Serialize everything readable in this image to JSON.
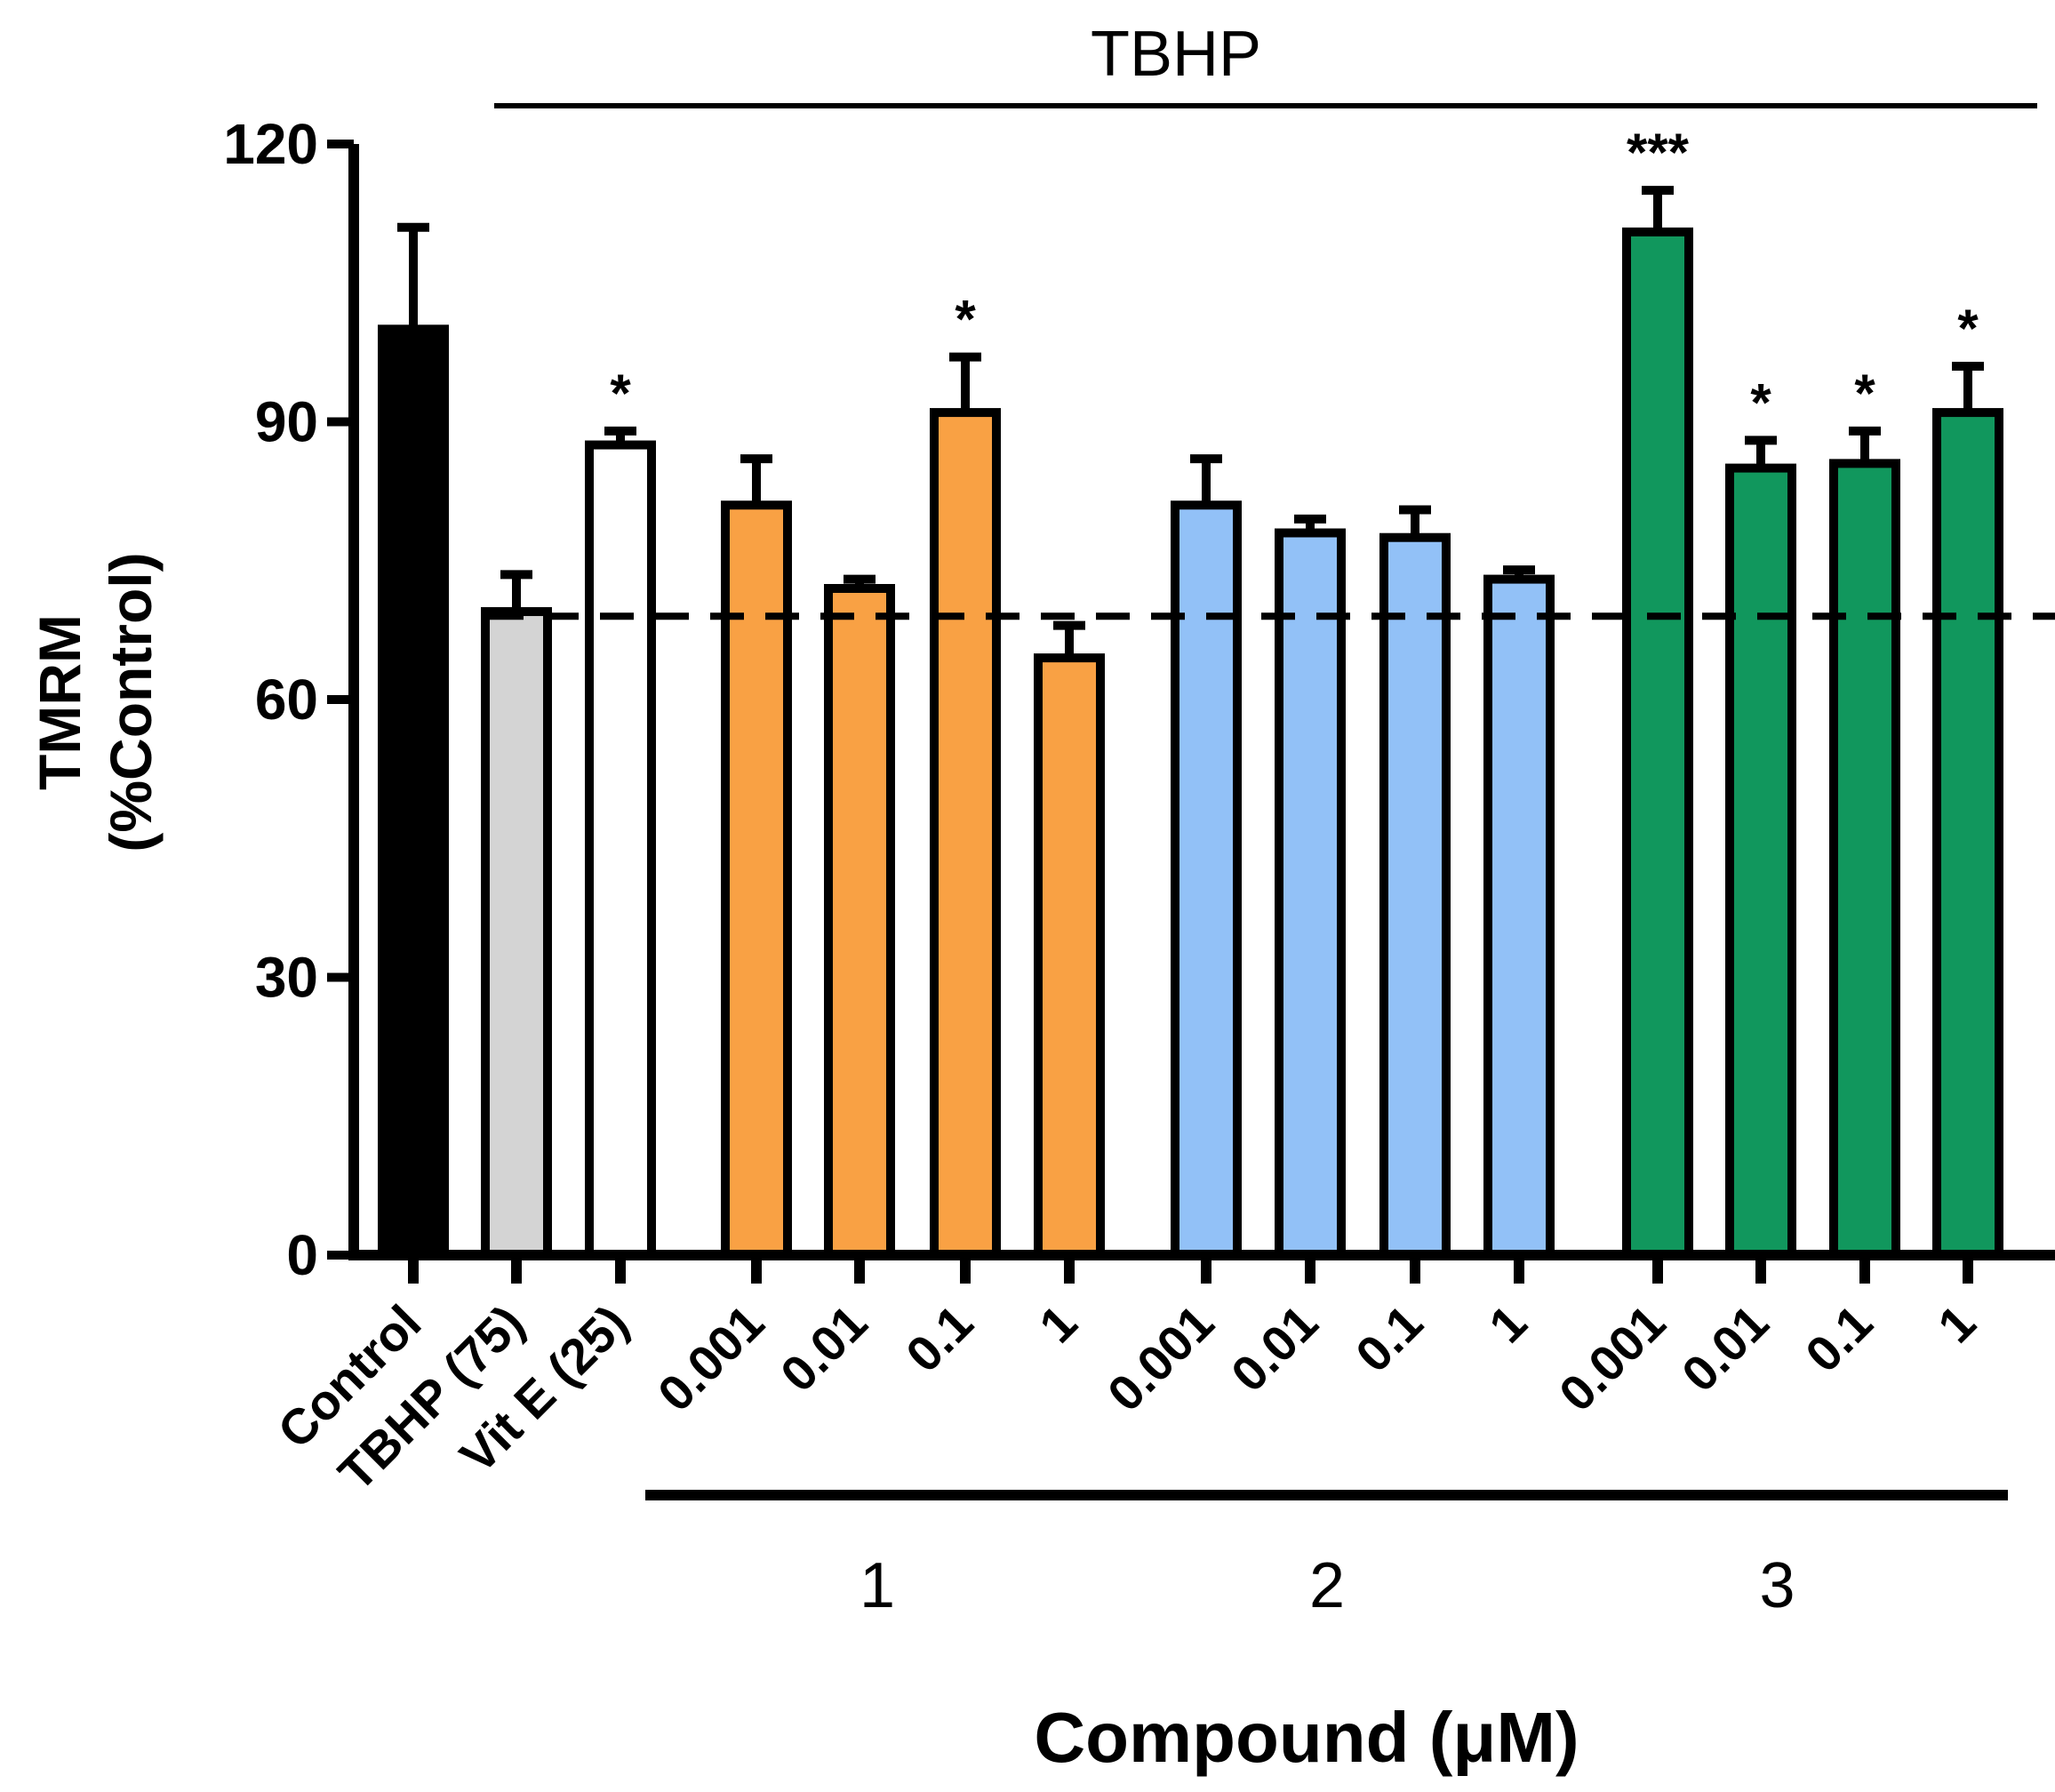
{
  "chart_data": {
    "type": "bar",
    "title": "",
    "xlabel": "Compound (μM)",
    "ylabel_lines": [
      "TMRM",
      "(%Control)"
    ],
    "ylim": [
      0,
      120
    ],
    "yticks": [
      "0",
      "30",
      "60",
      "90",
      "120"
    ],
    "ytick_values": [
      0,
      30,
      60,
      90,
      120
    ],
    "grid": false,
    "reference_line": {
      "value": 69,
      "style": "dashed"
    },
    "treatment_bracket": {
      "label": "TBHP",
      "from_bar": 1,
      "to_bar": 14
    },
    "groups": [
      {
        "label": "1",
        "from_bar": 3,
        "to_bar": 6
      },
      {
        "label": "2",
        "from_bar": 7,
        "to_bar": 10
      },
      {
        "label": "3",
        "from_bar": 11,
        "to_bar": 14
      }
    ],
    "bars": [
      {
        "label": "Control",
        "value": 100,
        "error": 11,
        "sig": "",
        "color": "#000000"
      },
      {
        "label": "TBHP (75)",
        "value": 69.5,
        "error": 4,
        "sig": "",
        "color": "#d4d4d4"
      },
      {
        "label": "Vit E (25)",
        "value": 87.5,
        "error": 1.5,
        "sig": "*",
        "color": "#ffffff"
      },
      {
        "label": "0.001",
        "value": 81,
        "error": 5,
        "sig": "",
        "color": "#f9a144"
      },
      {
        "label": "0.01",
        "value": 72,
        "error": 1,
        "sig": "",
        "color": "#f9a144"
      },
      {
        "label": "0.1",
        "value": 91,
        "error": 6,
        "sig": "*",
        "color": "#f9a144"
      },
      {
        "label": "1",
        "value": 64.5,
        "error": 3.5,
        "sig": "",
        "color": "#f9a144"
      },
      {
        "label": "0.001",
        "value": 81,
        "error": 5,
        "sig": "",
        "color": "#92c1f7"
      },
      {
        "label": "0.01",
        "value": 78,
        "error": 1.5,
        "sig": "",
        "color": "#92c1f7"
      },
      {
        "label": "0.1",
        "value": 77.5,
        "error": 3,
        "sig": "",
        "color": "#92c1f7"
      },
      {
        "label": "1",
        "value": 73,
        "error": 1,
        "sig": "",
        "color": "#92c1f7"
      },
      {
        "label": "0.001",
        "value": 110.5,
        "error": 4.5,
        "sig": "***",
        "color": "#11975d"
      },
      {
        "label": "0.01",
        "value": 85,
        "error": 3,
        "sig": "*",
        "color": "#11975d"
      },
      {
        "label": "0.1",
        "value": 85.5,
        "error": 3.5,
        "sig": "*",
        "color": "#11975d"
      },
      {
        "label": "1",
        "value": 91,
        "error": 5,
        "sig": "*",
        "color": "#11975d"
      }
    ]
  }
}
